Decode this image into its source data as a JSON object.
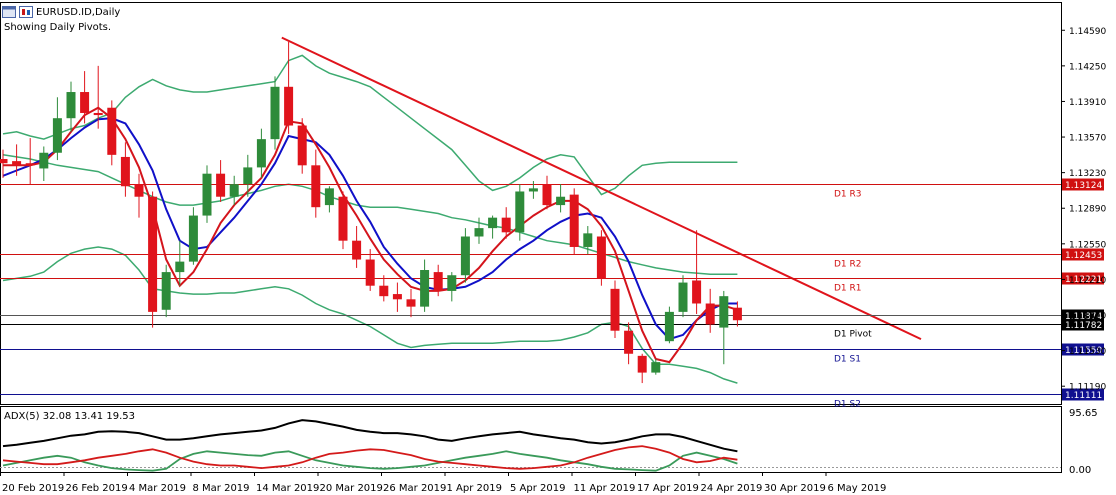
{
  "header": {
    "symbol_title": "EURUSD.ID,Daily",
    "subtitle": "Showing Daily Pivots."
  },
  "indicator": {
    "label": "ADX(5) 32.08 13.41 19.53",
    "scale_top": "95.65",
    "scale_bottom": "0.00"
  },
  "colors": {
    "bull": "#2e8b3a",
    "bear": "#e0141c",
    "bollinger": "#3daa70",
    "ma_fast": "#d4141c",
    "ma_slow": "#1010c8",
    "trendline": "#e0141c",
    "resistance": "#d01010",
    "support": "#101090",
    "adx_main": "#000000",
    "di_plus": "#3a9a5a",
    "di_minus": "#d41a1a"
  },
  "chart_data": {
    "type": "candlestick",
    "symbol": "EURUSD.ID",
    "timeframe": "Daily",
    "ylim": [
      1.1102,
      1.1486
    ],
    "y_ticks": [
      "1.14590",
      "1.14250",
      "1.13910",
      "1.13570",
      "1.13230",
      "1.12890",
      "1.12550",
      "1.12210",
      "1.11870",
      "1.11530",
      "1.11190"
    ],
    "x_tick_labels": [
      "20 Feb 2019",
      "26 Feb 2019",
      "4 Mar 2019",
      "8 Mar 2019",
      "14 Mar 2019",
      "20 Mar 2019",
      "26 Mar 2019",
      "1 Apr 2019",
      "5 Apr 2019",
      "11 Apr 2019",
      "17 Apr 2019",
      "24 Apr 2019",
      "30 Apr 2019",
      "6 May 2019"
    ],
    "candles": [
      {
        "o": 1.1336,
        "h": 1.1345,
        "l": 1.1318,
        "c": 1.1332
      },
      {
        "o": 1.1334,
        "h": 1.135,
        "l": 1.132,
        "c": 1.133
      },
      {
        "o": 1.1332,
        "h": 1.1356,
        "l": 1.1312,
        "c": 1.133
      },
      {
        "o": 1.1327,
        "h": 1.1348,
        "l": 1.1315,
        "c": 1.1342
      },
      {
        "o": 1.1342,
        "h": 1.1395,
        "l": 1.1335,
        "c": 1.1375
      },
      {
        "o": 1.1375,
        "h": 1.141,
        "l": 1.1362,
        "c": 1.14
      },
      {
        "o": 1.14,
        "h": 1.142,
        "l": 1.137,
        "c": 1.138
      },
      {
        "o": 1.138,
        "h": 1.1425,
        "l": 1.1365,
        "c": 1.1378
      },
      {
        "o": 1.1385,
        "h": 1.1392,
        "l": 1.133,
        "c": 1.134
      },
      {
        "o": 1.1338,
        "h": 1.1352,
        "l": 1.13,
        "c": 1.131
      },
      {
        "o": 1.1312,
        "h": 1.1322,
        "l": 1.128,
        "c": 1.13
      },
      {
        "o": 1.13,
        "h": 1.1305,
        "l": 1.1175,
        "c": 1.119
      },
      {
        "o": 1.1192,
        "h": 1.1235,
        "l": 1.1185,
        "c": 1.1228
      },
      {
        "o": 1.1228,
        "h": 1.1258,
        "l": 1.1215,
        "c": 1.1238
      },
      {
        "o": 1.1238,
        "h": 1.129,
        "l": 1.1235,
        "c": 1.1282
      },
      {
        "o": 1.1282,
        "h": 1.133,
        "l": 1.1275,
        "c": 1.1322
      },
      {
        "o": 1.1322,
        "h": 1.1335,
        "l": 1.1295,
        "c": 1.13
      },
      {
        "o": 1.13,
        "h": 1.132,
        "l": 1.1292,
        "c": 1.1312
      },
      {
        "o": 1.1312,
        "h": 1.134,
        "l": 1.13,
        "c": 1.1328
      },
      {
        "o": 1.1328,
        "h": 1.1365,
        "l": 1.1318,
        "c": 1.1355
      },
      {
        "o": 1.1355,
        "h": 1.1415,
        "l": 1.1345,
        "c": 1.1405
      },
      {
        "o": 1.1405,
        "h": 1.1448,
        "l": 1.136,
        "c": 1.1368
      },
      {
        "o": 1.1368,
        "h": 1.1375,
        "l": 1.1322,
        "c": 1.133
      },
      {
        "o": 1.133,
        "h": 1.1345,
        "l": 1.128,
        "c": 1.129
      },
      {
        "o": 1.1292,
        "h": 1.131,
        "l": 1.1285,
        "c": 1.1308
      },
      {
        "o": 1.13,
        "h": 1.1305,
        "l": 1.125,
        "c": 1.1258
      },
      {
        "o": 1.1258,
        "h": 1.1272,
        "l": 1.1232,
        "c": 1.124
      },
      {
        "o": 1.124,
        "h": 1.125,
        "l": 1.121,
        "c": 1.1215
      },
      {
        "o": 1.1215,
        "h": 1.1225,
        "l": 1.12,
        "c": 1.1205
      },
      {
        "o": 1.1207,
        "h": 1.1218,
        "l": 1.119,
        "c": 1.1202
      },
      {
        "o": 1.1202,
        "h": 1.1212,
        "l": 1.1185,
        "c": 1.1195
      },
      {
        "o": 1.1195,
        "h": 1.124,
        "l": 1.119,
        "c": 1.123
      },
      {
        "o": 1.1228,
        "h": 1.1235,
        "l": 1.1205,
        "c": 1.121
      },
      {
        "o": 1.121,
        "h": 1.1228,
        "l": 1.12,
        "c": 1.1225
      },
      {
        "o": 1.1225,
        "h": 1.127,
        "l": 1.1218,
        "c": 1.1262
      },
      {
        "o": 1.1262,
        "h": 1.128,
        "l": 1.1255,
        "c": 1.127
      },
      {
        "o": 1.127,
        "h": 1.1282,
        "l": 1.126,
        "c": 1.128
      },
      {
        "o": 1.128,
        "h": 1.129,
        "l": 1.126,
        "c": 1.1266
      },
      {
        "o": 1.1266,
        "h": 1.1312,
        "l": 1.1258,
        "c": 1.1305
      },
      {
        "o": 1.1305,
        "h": 1.1315,
        "l": 1.1298,
        "c": 1.1308
      },
      {
        "o": 1.1312,
        "h": 1.132,
        "l": 1.1288,
        "c": 1.1292
      },
      {
        "o": 1.1292,
        "h": 1.1312,
        "l": 1.1285,
        "c": 1.13
      },
      {
        "o": 1.1302,
        "h": 1.1308,
        "l": 1.1245,
        "c": 1.1252
      },
      {
        "o": 1.1252,
        "h": 1.1272,
        "l": 1.1245,
        "c": 1.1265
      },
      {
        "o": 1.1262,
        "h": 1.1268,
        "l": 1.1215,
        "c": 1.1222
      },
      {
        "o": 1.1212,
        "h": 1.122,
        "l": 1.1165,
        "c": 1.1172
      },
      {
        "o": 1.1172,
        "h": 1.118,
        "l": 1.114,
        "c": 1.115
      },
      {
        "o": 1.1148,
        "h": 1.115,
        "l": 1.1122,
        "c": 1.1132
      },
      {
        "o": 1.1132,
        "h": 1.1145,
        "l": 1.113,
        "c": 1.1142
      },
      {
        "o": 1.1162,
        "h": 1.1195,
        "l": 1.116,
        "c": 1.119
      },
      {
        "o": 1.119,
        "h": 1.1225,
        "l": 1.1185,
        "c": 1.1218
      },
      {
        "o": 1.122,
        "h": 1.1268,
        "l": 1.1188,
        "c": 1.1198
      },
      {
        "o": 1.1198,
        "h": 1.1212,
        "l": 1.117,
        "c": 1.1178
      },
      {
        "o": 1.1175,
        "h": 1.121,
        "l": 1.114,
        "c": 1.1205
      },
      {
        "o": 1.1194,
        "h": 1.12,
        "l": 1.1176,
        "c": 1.1182
      }
    ],
    "pivots": [
      {
        "label": "D1 R3",
        "value": 1.13124,
        "price_label": "1.13124",
        "kind": "resistance"
      },
      {
        "label": "D1 R2",
        "value": 1.12453,
        "price_label": "1.12453",
        "kind": "resistance"
      },
      {
        "label": "D1 R1",
        "value": 1.12221,
        "price_label": "1.12221",
        "kind": "resistance"
      },
      {
        "label": "D1 Pivot",
        "value": 1.11782,
        "price_label": "1.11782",
        "kind": "pivot"
      },
      {
        "label": "D1 S1",
        "value": 1.1155,
        "price_label": "1.11550",
        "kind": "support"
      },
      {
        "label": "D1 S2",
        "value": 1.11111,
        "price_label": "1.11111",
        "kind": "support"
      }
    ],
    "current_price": {
      "value": 1.11874,
      "price_label": "1.11874"
    },
    "trendline": {
      "from_index": 20.5,
      "from_price": 1.1452,
      "to_index": 67.5,
      "to_price": 1.1164
    },
    "bollinger": {
      "upper": [
        1.136,
        1.1362,
        1.1358,
        1.1355,
        1.136,
        1.1365,
        1.1368,
        1.1375,
        1.138,
        1.1395,
        1.1405,
        1.1412,
        1.1406,
        1.1402,
        1.14,
        1.14,
        1.1402,
        1.1404,
        1.1406,
        1.1408,
        1.141,
        1.143,
        1.1435,
        1.1425,
        1.1418,
        1.1414,
        1.141,
        1.1405,
        1.1395,
        1.1385,
        1.1375,
        1.1365,
        1.1355,
        1.1345,
        1.133,
        1.1315,
        1.1306,
        1.131,
        1.1318,
        1.1328,
        1.1336,
        1.134,
        1.1338,
        1.132,
        1.1302,
        1.1308,
        1.132,
        1.133,
        1.1332,
        1.1333,
        1.1333,
        1.1333,
        1.1333,
        1.1333,
        1.1333
      ],
      "middle": [
        1.134,
        1.1338,
        1.1336,
        1.1333,
        1.133,
        1.1328,
        1.1326,
        1.1324,
        1.1318,
        1.1312,
        1.1306,
        1.13,
        1.1295,
        1.1292,
        1.1292,
        1.1294,
        1.1296,
        1.13,
        1.1303,
        1.1306,
        1.131,
        1.1312,
        1.131,
        1.1306,
        1.13,
        1.1296,
        1.1292,
        1.129,
        1.129,
        1.129,
        1.1288,
        1.1286,
        1.1284,
        1.128,
        1.1278,
        1.1275,
        1.1272,
        1.127,
        1.1266,
        1.1262,
        1.1258,
        1.1256,
        1.1254,
        1.125,
        1.1246,
        1.1242,
        1.1238,
        1.1235,
        1.1232,
        1.123,
        1.1228,
        1.1227,
        1.1226,
        1.1226,
        1.1226
      ],
      "lower": [
        1.122,
        1.1222,
        1.1224,
        1.1228,
        1.1238,
        1.1246,
        1.125,
        1.1252,
        1.125,
        1.1244,
        1.123,
        1.1212,
        1.121,
        1.1208,
        1.1207,
        1.1207,
        1.1208,
        1.1208,
        1.121,
        1.1212,
        1.1214,
        1.1212,
        1.1206,
        1.1198,
        1.1192,
        1.1188,
        1.1182,
        1.1176,
        1.1168,
        1.116,
        1.1156,
        1.1158,
        1.1159,
        1.116,
        1.116,
        1.116,
        1.116,
        1.1161,
        1.1162,
        1.1162,
        1.1162,
        1.1163,
        1.1166,
        1.117,
        1.1178,
        1.118,
        1.1176,
        1.1155,
        1.114,
        1.114,
        1.1138,
        1.1136,
        1.1132,
        1.1126,
        1.1122
      ]
    },
    "ma_fast": [
      1.133,
      1.133,
      1.133,
      1.1333,
      1.1345,
      1.1362,
      1.1378,
      1.1385,
      1.1375,
      1.1355,
      1.1328,
      1.129,
      1.124,
      1.1215,
      1.1228,
      1.125,
      1.1275,
      1.1292,
      1.1305,
      1.1318,
      1.134,
      1.1372,
      1.137,
      1.135,
      1.1328,
      1.1302,
      1.1282,
      1.126,
      1.124,
      1.1226,
      1.1214,
      1.121,
      1.121,
      1.1212,
      1.122,
      1.1232,
      1.1248,
      1.1262,
      1.1272,
      1.1282,
      1.129,
      1.1296,
      1.1296,
      1.1288,
      1.1272,
      1.1248,
      1.121,
      1.1172,
      1.1145,
      1.1142,
      1.116,
      1.1182,
      1.1196,
      1.1196,
      1.1192
    ],
    "ma_slow": [
      1.132,
      1.1325,
      1.133,
      1.1336,
      1.1345,
      1.1356,
      1.1366,
      1.1374,
      1.1375,
      1.137,
      1.135,
      1.1325,
      1.1288,
      1.1258,
      1.125,
      1.1252,
      1.1266,
      1.128,
      1.1296,
      1.1312,
      1.1332,
      1.1358,
      1.1355,
      1.1352,
      1.134,
      1.132,
      1.1296,
      1.1276,
      1.1252,
      1.1236,
      1.1222,
      1.1214,
      1.1211,
      1.1212,
      1.1214,
      1.122,
      1.1228,
      1.124,
      1.125,
      1.1258,
      1.1268,
      1.1276,
      1.1282,
      1.1284,
      1.128,
      1.1262,
      1.1238,
      1.1206,
      1.1178,
      1.1164,
      1.1168,
      1.1182,
      1.1192,
      1.1198,
      1.1198
    ],
    "adx_series": [
      {
        "name": "ADX",
        "values": [
          40,
          42,
          45,
          48,
          52,
          56,
          58,
          62,
          63,
          62,
          60,
          55,
          50,
          50,
          52,
          55,
          58,
          60,
          62,
          64,
          68,
          75,
          80,
          78,
          74,
          70,
          65,
          62,
          60,
          60,
          58,
          55,
          50,
          48,
          52,
          55,
          58,
          60,
          62,
          58,
          55,
          52,
          50,
          46,
          44,
          46,
          50,
          55,
          58,
          58,
          54,
          48,
          42,
          36,
          32
        ]
      },
      {
        "name": "+DI",
        "values": [
          10,
          14,
          18,
          22,
          25,
          22,
          15,
          10,
          6,
          4,
          3,
          2,
          5,
          20,
          28,
          32,
          30,
          28,
          26,
          25,
          30,
          32,
          25,
          18,
          14,
          10,
          8,
          6,
          5,
          6,
          8,
          10,
          14,
          18,
          22,
          25,
          28,
          32,
          28,
          25,
          22,
          18,
          15,
          12,
          8,
          5,
          4,
          3,
          2,
          10,
          25,
          30,
          25,
          20,
          13
        ]
      },
      {
        "name": "-DI",
        "values": [
          18,
          16,
          14,
          12,
          12,
          15,
          18,
          22,
          25,
          28,
          32,
          35,
          30,
          22,
          16,
          12,
          10,
          10,
          8,
          6,
          8,
          10,
          15,
          22,
          28,
          30,
          33,
          35,
          34,
          30,
          26,
          20,
          16,
          14,
          12,
          10,
          8,
          6,
          5,
          6,
          8,
          10,
          15,
          22,
          28,
          34,
          38,
          40,
          36,
          30,
          20,
          15,
          17,
          22,
          19
        ]
      }
    ]
  }
}
